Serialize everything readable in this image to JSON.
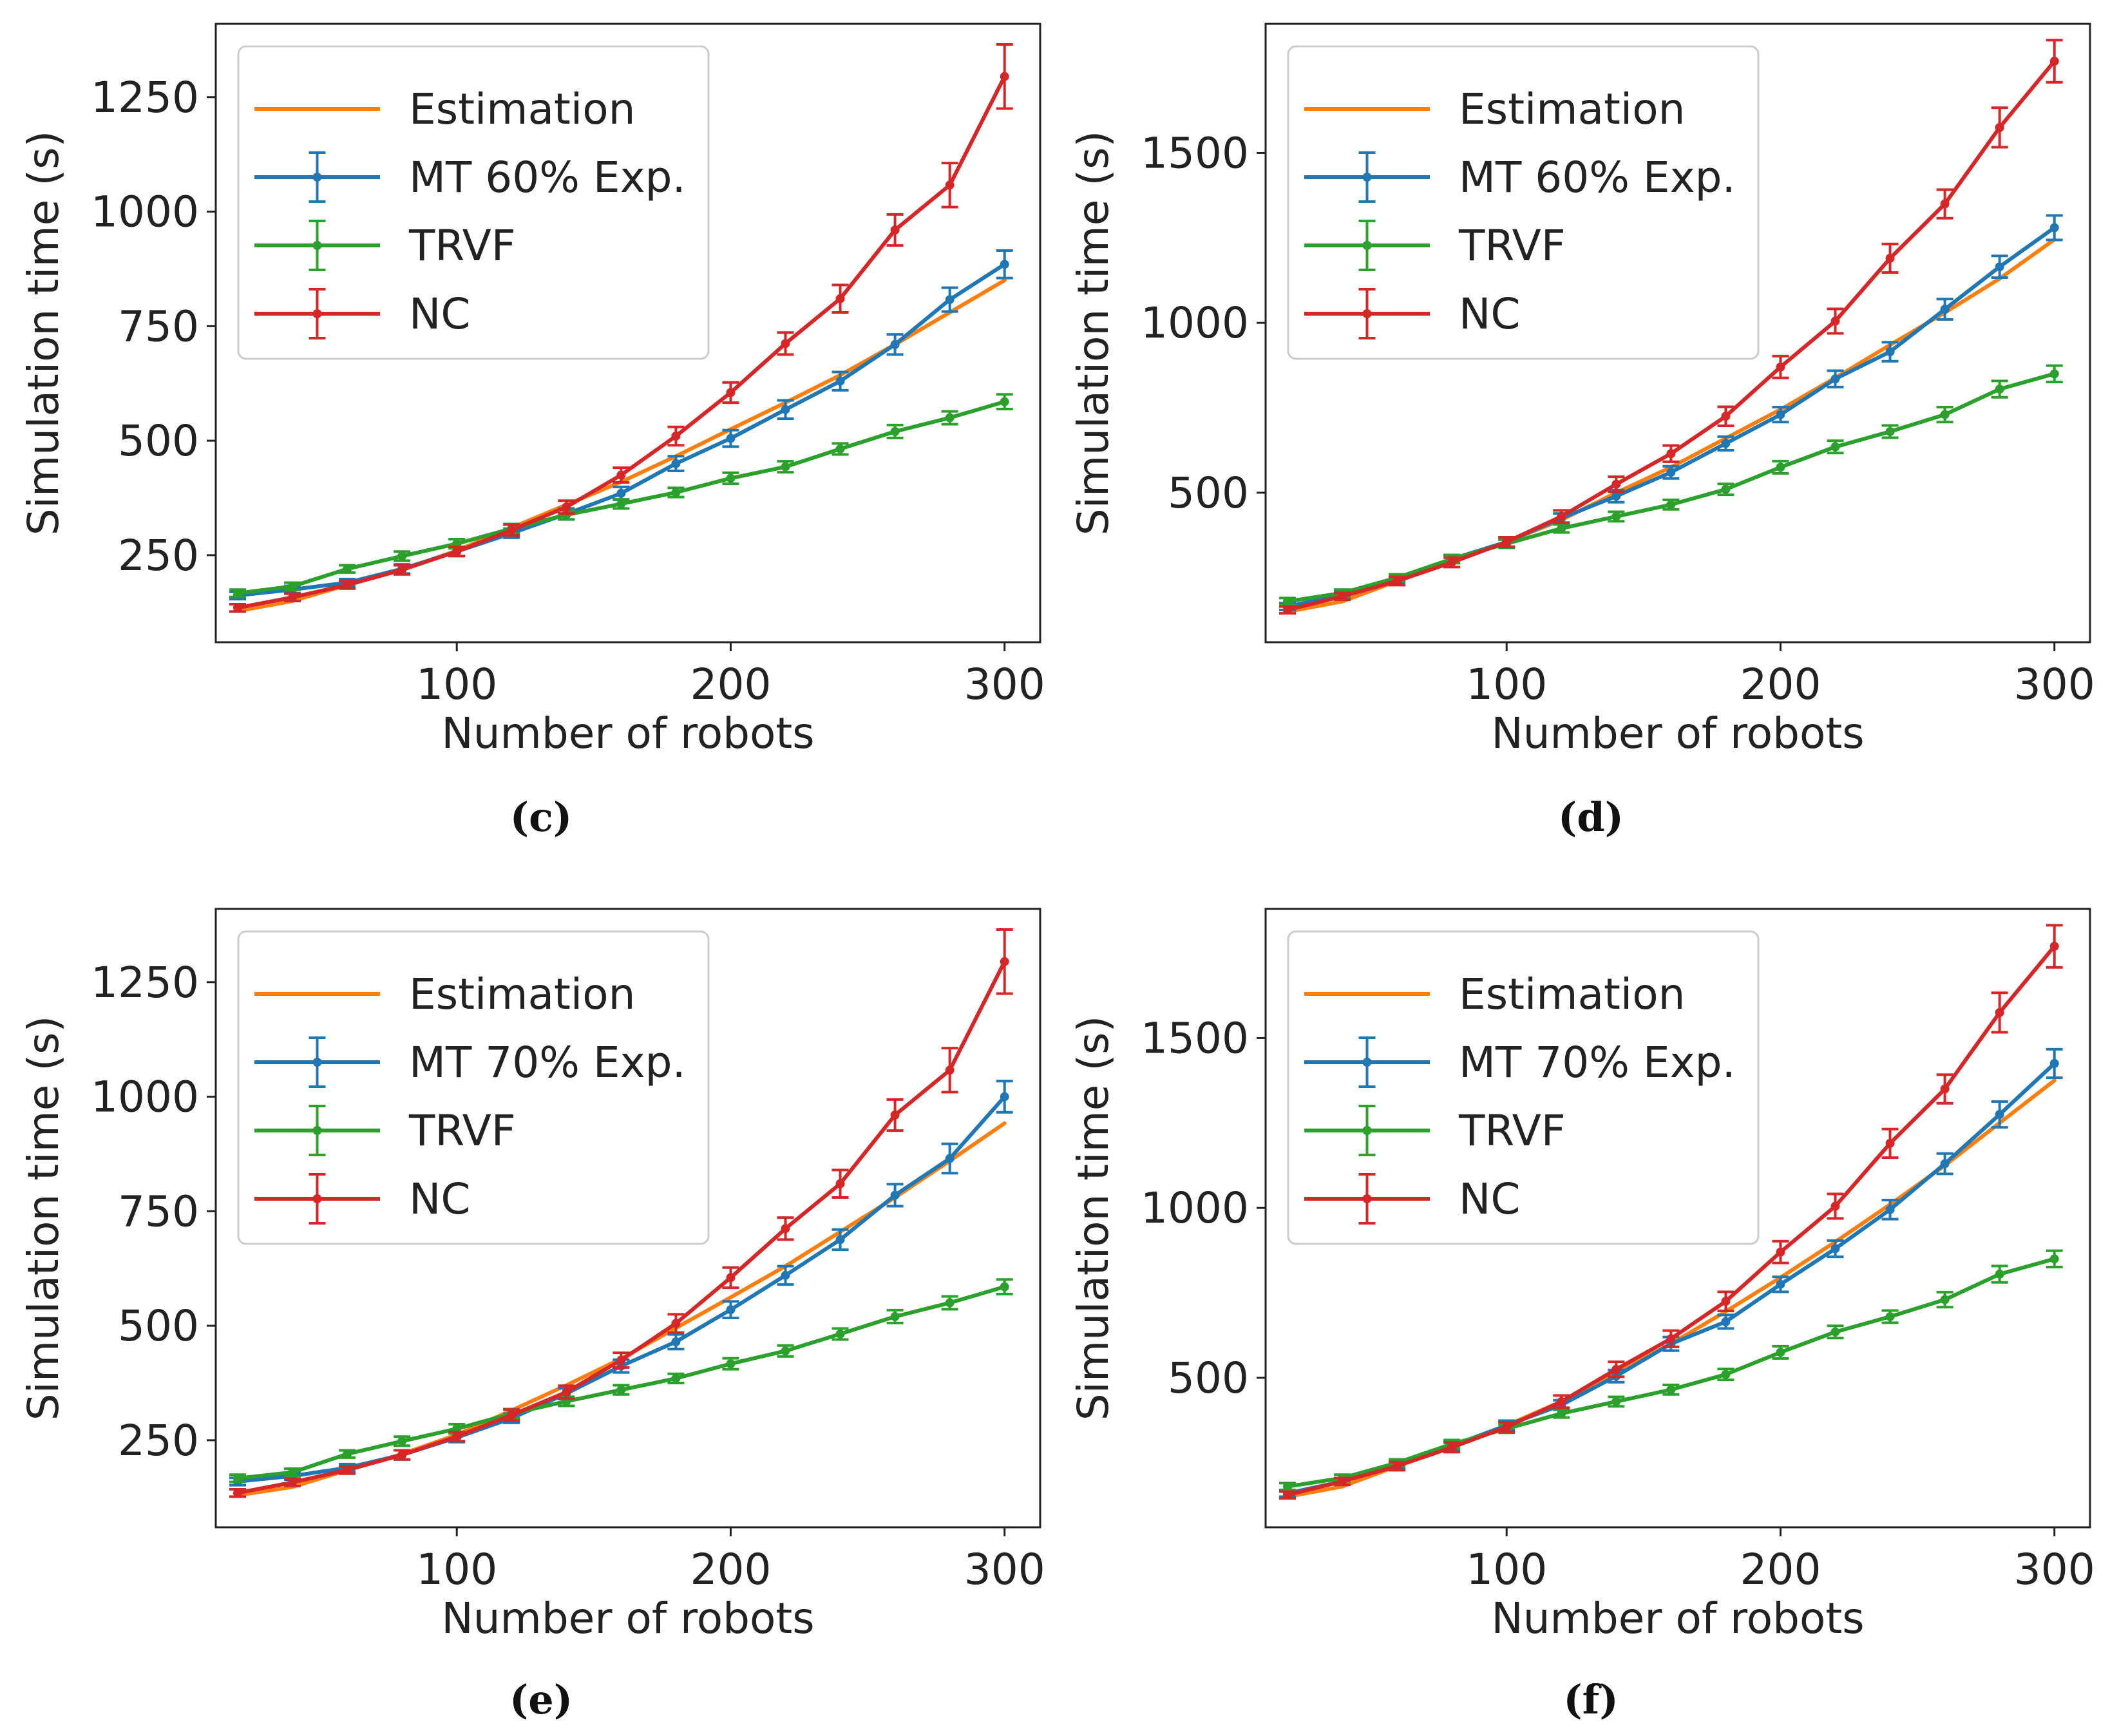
{
  "chart_data": [
    {
      "type": "line",
      "panel": "(c)",
      "xlabel": "Number of robots",
      "ylabel": "Simulation time (s)",
      "xlim": [
        12,
        313
      ],
      "ylim": [
        60,
        1410
      ],
      "xticks": [
        100,
        200,
        300
      ],
      "yticks": [
        250,
        500,
        750,
        1000,
        1250
      ],
      "legend_position": "upper left",
      "x": [
        20,
        40,
        60,
        80,
        100,
        120,
        140,
        160,
        180,
        200,
        220,
        240,
        260,
        280,
        300
      ],
      "series": [
        {
          "name": "Estimation",
          "color": "#ff7f0e",
          "values": [
            128,
            150,
            185,
            218,
            260,
            310,
            360,
            410,
            466,
            525,
            583,
            643,
            710,
            780,
            850
          ]
        },
        {
          "name": "MT 60% Exp.",
          "color": "#1f77b4",
          "values": [
            162,
            175,
            190,
            220,
            258,
            298,
            340,
            385,
            450,
            505,
            568,
            630,
            710,
            808,
            885
          ],
          "errors": [
            8,
            8,
            8,
            10,
            10,
            10,
            12,
            14,
            16,
            18,
            20,
            20,
            22,
            26,
            30
          ]
        },
        {
          "name": "TRVF",
          "color": "#2ca02c",
          "values": [
            167,
            182,
            220,
            248,
            275,
            308,
            338,
            362,
            387,
            418,
            443,
            482,
            520,
            550,
            585
          ],
          "errors": [
            8,
            8,
            8,
            10,
            10,
            10,
            10,
            10,
            10,
            12,
            12,
            12,
            14,
            14,
            16
          ]
        },
        {
          "name": "NC",
          "color": "#d62728",
          "values": [
            135,
            158,
            185,
            218,
            258,
            305,
            355,
            425,
            510,
            605,
            712,
            810,
            960,
            1058,
            1295
          ],
          "errors": [
            8,
            8,
            8,
            10,
            10,
            12,
            14,
            16,
            20,
            22,
            24,
            30,
            34,
            48,
            70
          ]
        }
      ],
      "caption": "(c)"
    },
    {
      "type": "line",
      "panel": "(d)",
      "xlabel": "Number of robots",
      "ylabel": "Simulation time (s)",
      "xlim": [
        12,
        313
      ],
      "ylim": [
        60,
        1880
      ],
      "xticks": [
        100,
        200,
        300
      ],
      "yticks": [
        500,
        1000,
        1500
      ],
      "legend_position": "upper left",
      "x": [
        20,
        40,
        60,
        80,
        100,
        120,
        140,
        160,
        180,
        200,
        220,
        240,
        260,
        280,
        300
      ],
      "series": [
        {
          "name": "Estimation",
          "color": "#ff7f0e",
          "values": [
            150,
            180,
            240,
            295,
            355,
            420,
            500,
            575,
            660,
            745,
            838,
            935,
            1030,
            1130,
            1245
          ]
        },
        {
          "name": "MT 60% Exp.",
          "color": "#1f77b4",
          "values": [
            165,
            200,
            245,
            305,
            355,
            425,
            490,
            560,
            645,
            730,
            835,
            915,
            1040,
            1165,
            1280
          ],
          "errors": [
            10,
            10,
            12,
            12,
            14,
            14,
            18,
            18,
            20,
            22,
            24,
            28,
            30,
            32,
            36
          ]
        },
        {
          "name": "TRVF",
          "color": "#2ca02c",
          "values": [
            180,
            205,
            250,
            305,
            350,
            395,
            430,
            465,
            510,
            575,
            635,
            680,
            730,
            805,
            850
          ],
          "errors": [
            10,
            10,
            10,
            12,
            12,
            12,
            14,
            14,
            16,
            18,
            18,
            18,
            22,
            24,
            24
          ]
        },
        {
          "name": "NC",
          "color": "#d62728",
          "values": [
            155,
            195,
            240,
            295,
            355,
            430,
            525,
            615,
            725,
            870,
            1005,
            1190,
            1350,
            1575,
            1770
          ],
          "errors": [
            10,
            10,
            12,
            14,
            14,
            18,
            22,
            24,
            28,
            32,
            36,
            42,
            42,
            58,
            62
          ]
        }
      ],
      "caption": "(d)"
    },
    {
      "type": "line",
      "panel": "(e)",
      "xlabel": "Number of robots",
      "ylabel": "Simulation time (s)",
      "xlim": [
        12,
        313
      ],
      "ylim": [
        60,
        1410
      ],
      "xticks": [
        100,
        200,
        300
      ],
      "yticks": [
        250,
        500,
        750,
        1000,
        1250
      ],
      "legend_position": "upper left",
      "x": [
        20,
        40,
        60,
        80,
        100,
        120,
        140,
        160,
        180,
        200,
        220,
        240,
        260,
        280,
        300
      ],
      "series": [
        {
          "name": "Estimation",
          "color": "#ff7f0e",
          "values": [
            130,
            148,
            185,
            220,
            262,
            315,
            370,
            428,
            495,
            562,
            630,
            705,
            780,
            860,
            942
          ]
        },
        {
          "name": "MT 70% Exp.",
          "color": "#1f77b4",
          "values": [
            160,
            172,
            190,
            218,
            256,
            298,
            352,
            412,
            465,
            535,
            610,
            688,
            785,
            865,
            1000
          ],
          "errors": [
            8,
            8,
            8,
            10,
            10,
            10,
            12,
            14,
            16,
            18,
            20,
            22,
            24,
            32,
            34
          ]
        },
        {
          "name": "TRVF",
          "color": "#2ca02c",
          "values": [
            167,
            180,
            220,
            248,
            275,
            308,
            335,
            360,
            385,
            417,
            445,
            482,
            520,
            550,
            585
          ],
          "errors": [
            8,
            8,
            8,
            10,
            10,
            10,
            10,
            10,
            10,
            12,
            12,
            12,
            14,
            14,
            16
          ]
        },
        {
          "name": "NC",
          "color": "#d62728",
          "values": [
            135,
            158,
            185,
            218,
            258,
            305,
            355,
            425,
            505,
            605,
            712,
            810,
            960,
            1058,
            1295
          ],
          "errors": [
            8,
            8,
            8,
            10,
            10,
            12,
            14,
            16,
            20,
            22,
            24,
            30,
            34,
            48,
            70
          ]
        }
      ],
      "caption": "(e)"
    },
    {
      "type": "line",
      "panel": "(f)",
      "xlabel": "Number of robots",
      "ylabel": "Simulation time (s)",
      "xlim": [
        12,
        313
      ],
      "ylim": [
        60,
        1880
      ],
      "xticks": [
        100,
        200,
        300
      ],
      "yticks": [
        500,
        1000,
        1500
      ],
      "legend_position": "upper left",
      "x": [
        20,
        40,
        60,
        80,
        100,
        120,
        140,
        160,
        180,
        200,
        220,
        240,
        260,
        280,
        300
      ],
      "series": [
        {
          "name": "Estimation",
          "color": "#ff7f0e",
          "values": [
            150,
            180,
            240,
            298,
            360,
            430,
            515,
            600,
            695,
            795,
            900,
            1010,
            1125,
            1250,
            1375
          ]
        },
        {
          "name": "MT 70% Exp.",
          "color": "#1f77b4",
          "values": [
            160,
            195,
            245,
            300,
            360,
            420,
            505,
            600,
            665,
            775,
            880,
            995,
            1130,
            1275,
            1425
          ],
          "errors": [
            10,
            10,
            12,
            12,
            14,
            14,
            18,
            20,
            20,
            22,
            24,
            28,
            30,
            38,
            42
          ]
        },
        {
          "name": "TRVF",
          "color": "#2ca02c",
          "values": [
            180,
            205,
            250,
            305,
            350,
            395,
            430,
            465,
            510,
            575,
            635,
            680,
            730,
            805,
            850
          ],
          "errors": [
            10,
            10,
            10,
            12,
            12,
            12,
            14,
            14,
            16,
            18,
            18,
            18,
            22,
            24,
            24
          ]
        },
        {
          "name": "NC",
          "color": "#d62728",
          "values": [
            155,
            195,
            240,
            295,
            355,
            430,
            525,
            615,
            725,
            870,
            1005,
            1190,
            1350,
            1575,
            1770
          ],
          "errors": [
            10,
            10,
            12,
            14,
            14,
            18,
            22,
            24,
            28,
            32,
            36,
            42,
            42,
            58,
            62
          ]
        }
      ],
      "caption": "(f)"
    }
  ]
}
